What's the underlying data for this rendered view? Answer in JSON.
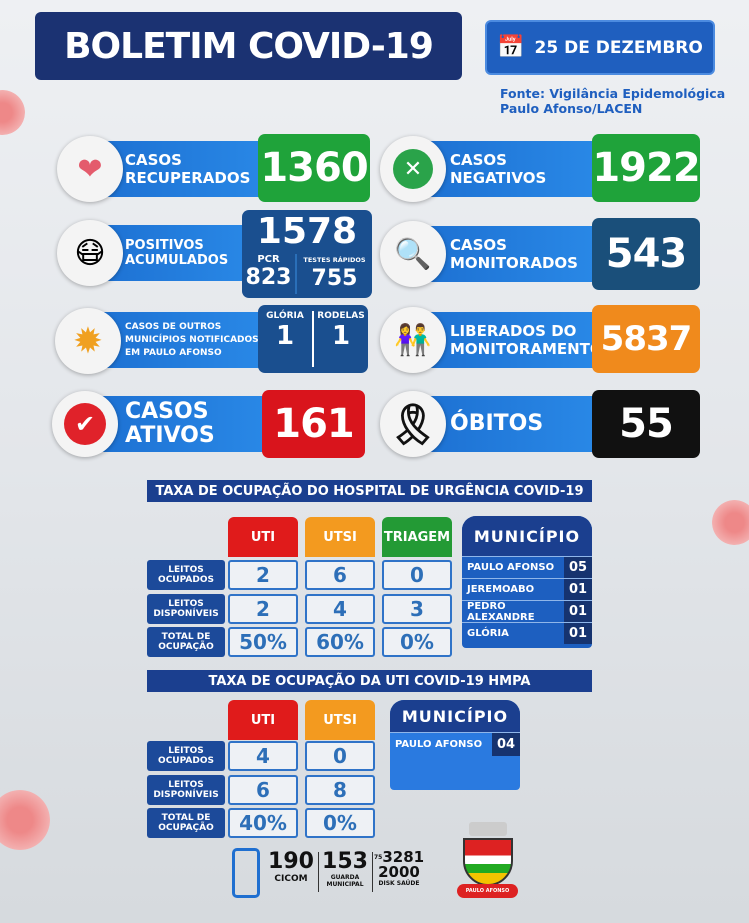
{
  "header": {
    "title": "BOLETIM COVID-19",
    "date": "25 DE DEZEMBRO",
    "source": "Fonte: Vigilância Epidemológica",
    "source2": "Paulo Afonso/LACEN"
  },
  "cards": {
    "recuperados": {
      "label1": "CASOS",
      "label2": "RECUPERADOS",
      "value": "1360",
      "icon": "heart-hands-icon",
      "color": "#1fa33a"
    },
    "negativos": {
      "label1": "CASOS",
      "label2": "NEGATIVOS",
      "value": "1922",
      "icon": "x-circle-icon",
      "color": "#1fa33a"
    },
    "positivos": {
      "label1": "POSITIVOS",
      "label2": "ACUMULADOS",
      "value": "1578",
      "pcr_label": "PCR",
      "pcr": "823",
      "rapidos_label": "TESTES RÁPIDOS",
      "rapidos": "755",
      "icon": "masked-person-icon",
      "color": "#1a4f8f"
    },
    "monitorados": {
      "label1": "CASOS",
      "label2": "MONITORADOS",
      "value": "543",
      "icon": "magnifier-icon",
      "color": "#1a4f7a"
    },
    "outros": {
      "label1": "CASOS DE OUTROS",
      "label2": "MUNICÍPIOS NOTIFICADOS",
      "label3": "EM PAULO AFONSO",
      "a_label": "GLÓRIA",
      "a": "1",
      "b_label": "RODELAS",
      "b": "1",
      "icon": "virus-icon"
    },
    "liberados": {
      "label1": "LIBERADOS DO",
      "label2": "MONITORAMENTO",
      "value": "5837",
      "icon": "people-icon",
      "color": "#f08a1c"
    },
    "ativos": {
      "label1": "CASOS",
      "label2": "ATIVOS",
      "value": "161",
      "icon": "check-circle-icon",
      "color": "#d9141c"
    },
    "obitos": {
      "label": "ÓBITOS",
      "value": "55",
      "icon": "mourning-ribbon-icon",
      "color": "#111111"
    }
  },
  "hospital": {
    "title": "TAXA DE OCUPAÇÃO DO HOSPITAL DE URGÊNCIA COVID-19",
    "columns": [
      "UTI",
      "UTSI",
      "TRIAGEM"
    ],
    "rows": [
      {
        "label1": "LEITOS",
        "label2": "OCUPADOS",
        "values": [
          "2",
          "6",
          "0"
        ]
      },
      {
        "label1": "LEITOS",
        "label2": "DISPONÍVEIS",
        "values": [
          "2",
          "4",
          "3"
        ]
      },
      {
        "label1": "TOTAL DE",
        "label2": "OCUPAÇÃO",
        "values": [
          "50%",
          "60%",
          "0%"
        ]
      }
    ],
    "municipio": {
      "title": "MUNICÍPIO",
      "items": [
        {
          "name": "PAULO AFONSO",
          "value": "05"
        },
        {
          "name": "JEREMOABO",
          "value": "01"
        },
        {
          "name": "PEDRO ALEXANDRE",
          "value": "01"
        },
        {
          "name": "GLÓRIA",
          "value": "01"
        }
      ]
    }
  },
  "hmpa": {
    "title": "TAXA DE OCUPAÇÃO DA UTI COVID-19 HMPA",
    "columns": [
      "UTI",
      "UTSI"
    ],
    "rows": [
      {
        "label1": "LEITOS",
        "label2": "OCUPADOS",
        "values": [
          "4",
          "0"
        ]
      },
      {
        "label1": "LEITOS",
        "label2": "DISPONÍVEIS",
        "values": [
          "6",
          "8"
        ]
      },
      {
        "label1": "TOTAL DE",
        "label2": "OCUPAÇÃO",
        "values": [
          "40%",
          "0%"
        ]
      }
    ],
    "municipio": {
      "title": "MUNICÍPIO",
      "items": [
        {
          "name": "PAULO AFONSO",
          "value": "04"
        }
      ]
    }
  },
  "footer": {
    "c1": "190",
    "c1l": "CICOM",
    "c2": "153",
    "c2l1": "GUARDA",
    "c2l2": "MUNICIPAL",
    "c3pre": "75",
    "c3a": "3281",
    "c3b": "2000",
    "c3l": "DISK SAÚDE",
    "crest": "PAULO AFONSO"
  }
}
